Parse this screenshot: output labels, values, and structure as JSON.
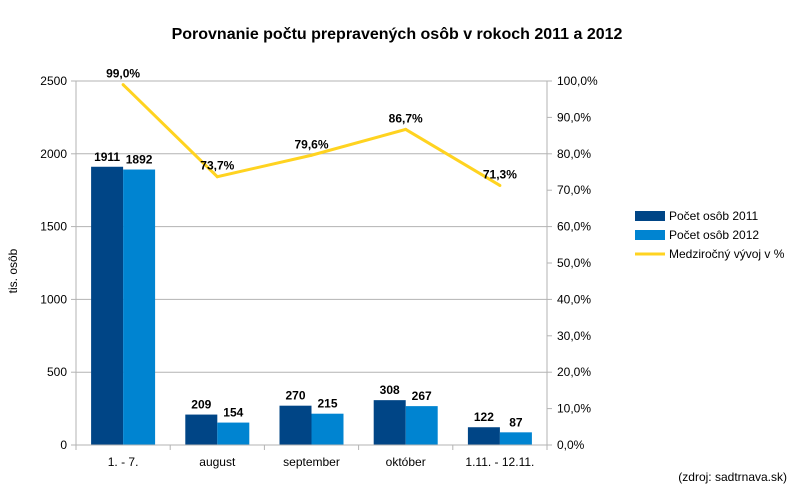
{
  "chart_data": {
    "type": "bar",
    "title": "Porovnanie počtu prepravených osôb v rokoch 2011 a 2012",
    "categories": [
      "1. - 7.",
      "august",
      "september",
      "október",
      "1.11. - 12.11."
    ],
    "ylabel": "tis. osôb",
    "ylim": [
      0,
      2500
    ],
    "yticks": [
      0,
      500,
      1000,
      1500,
      2000,
      2500
    ],
    "ytick_labels": [
      "0",
      "500",
      "1000",
      "1500",
      "2000",
      "2500"
    ],
    "y2lim": [
      0,
      100
    ],
    "y2ticks": [
      0,
      10,
      20,
      30,
      40,
      50,
      60,
      70,
      80,
      90,
      100
    ],
    "y2tick_labels": [
      "0,0%",
      "10,0%",
      "20,0%",
      "30,0%",
      "40,0%",
      "50,0%",
      "60,0%",
      "70,0%",
      "80,0%",
      "90,0%",
      "100,0%"
    ],
    "series": [
      {
        "name": "Počet osôb 2011",
        "kind": "bar",
        "axis": "left",
        "color": "#004586",
        "values": [
          1911,
          209,
          270,
          308,
          122
        ],
        "labels": [
          "1911",
          "209",
          "270",
          "308",
          "122"
        ]
      },
      {
        "name": "Počet osôb 2012",
        "kind": "bar",
        "axis": "left",
        "color": "#0084d1",
        "values": [
          1892,
          154,
          215,
          267,
          87
        ],
        "labels": [
          "1892",
          "154",
          "215",
          "267",
          "87"
        ]
      },
      {
        "name": "Medziročný vývoj v %",
        "kind": "line",
        "axis": "right",
        "color": "#ffd320",
        "values": [
          99.0,
          73.7,
          79.6,
          86.7,
          71.3
        ],
        "labels": [
          "99,0%",
          "73,7%",
          "79,6%",
          "86,7%",
          "71,3%"
        ]
      }
    ],
    "legend_position": "right",
    "source_note": "(zdroj: sadtrnava.sk)"
  }
}
